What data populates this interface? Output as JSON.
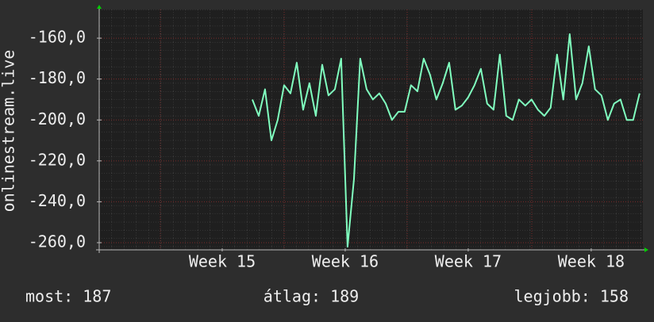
{
  "chart_data": {
    "type": "line",
    "ylabel": "onlinestream.live",
    "x": [
      15.245,
      15.297,
      15.348,
      15.4,
      15.451,
      15.503,
      15.555,
      15.606,
      15.658,
      15.709,
      15.761,
      15.813,
      15.864,
      15.916,
      15.967,
      16.019,
      16.071,
      16.122,
      16.174,
      16.225,
      16.277,
      16.329,
      16.38,
      16.432,
      16.483,
      16.535,
      16.587,
      16.638,
      16.69,
      16.741,
      16.793,
      16.845,
      16.896,
      16.948,
      16.999,
      17.051,
      17.103,
      17.154,
      17.206,
      17.257,
      17.309,
      17.361,
      17.412,
      17.464,
      17.515,
      17.567,
      17.619,
      17.67,
      17.722,
      17.773,
      17.825,
      17.877,
      17.928,
      17.98,
      18.031,
      18.083,
      18.135,
      18.186,
      18.238,
      18.289,
      18.341,
      18.393
    ],
    "series": [
      {
        "color": "#80ffbf",
        "values": [
          -190,
          -198,
          -185,
          -210,
          -200,
          -183,
          -187,
          -172,
          -195,
          -182,
          -198,
          -173,
          -188,
          -185,
          -170,
          -262,
          -229,
          -170,
          -185,
          -190,
          -187,
          -192,
          -200,
          -196,
          -196,
          -183,
          -186,
          -170,
          -178,
          -190,
          -182,
          -172,
          -195,
          -193,
          -189,
          -183,
          -175,
          -192,
          -195,
          -168,
          -198,
          -200,
          -190,
          -193,
          -190,
          -195,
          -198,
          -194,
          -168,
          -190,
          -158,
          -190,
          -182,
          -164,
          -185,
          -188,
          -200,
          -192,
          -190,
          -200,
          -200,
          -187
        ]
      }
    ],
    "xlim": [
      14.0,
      18.42
    ],
    "xticks": [
      {
        "value": 15,
        "label": "Week 15"
      },
      {
        "value": 16,
        "label": "Week 16"
      },
      {
        "value": 17,
        "label": "Week 17"
      },
      {
        "value": 18,
        "label": "Week 18"
      }
    ],
    "ylim": [
      -263.5,
      -146
    ],
    "yticks": [
      {
        "value": -160,
        "label": "-160,0"
      },
      {
        "value": -180,
        "label": "-180,0"
      },
      {
        "value": -200,
        "label": "-200,0"
      },
      {
        "value": -220,
        "label": "-220,0"
      },
      {
        "value": -240,
        "label": "-240,0"
      },
      {
        "value": -260,
        "label": "-260,0"
      }
    ],
    "grid": true,
    "stats": [
      "most: 187",
      "átlag: 189",
      "legjobb: 158"
    ]
  }
}
